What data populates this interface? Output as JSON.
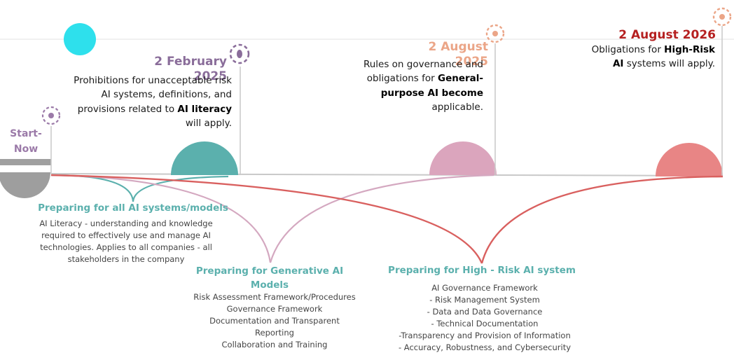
{
  "start": {
    "label": "Start-\nNow",
    "color": "#9b7aa8"
  },
  "milestones": [
    {
      "date": "2 February 2025",
      "date_color": "#8a6d9a",
      "desc_parts": [
        {
          "text": "Prohibitions for unacceptable risk AI systems, definitions, and provisions related to ",
          "bold": false
        },
        {
          "text": "AI literacy",
          "bold": true
        },
        {
          "text": " will apply.",
          "bold": false
        }
      ],
      "dome_color": "#5bb0ad",
      "icon": "target-icon",
      "icon_color": "#8a6d9a"
    },
    {
      "date": "2 August 2025",
      "date_color": "#eba587",
      "desc_parts": [
        {
          "text": "Rules on governance and obligations for ",
          "bold": false
        },
        {
          "text": "General-purpose AI become",
          "bold": true
        },
        {
          "text": " applicable.",
          "bold": false
        }
      ],
      "dome_color": "#dba5bd",
      "icon": "target-icon",
      "icon_color": "#eba587"
    },
    {
      "date": "2 August 2026",
      "date_color": "#b52020",
      "desc_parts": [
        {
          "text": "Obligations for ",
          "bold": false
        },
        {
          "text": "High-Risk AI",
          "bold": true
        },
        {
          "text": " systems will apply.",
          "bold": false
        }
      ],
      "dome_color": "#e88585",
      "icon": "target-icon",
      "icon_color": "#eba587"
    }
  ],
  "preparations": [
    {
      "title": "Preparing for all AI systems/models",
      "title_color": "#5bb0ad",
      "lines": [
        "AI Literacy - understanding and knowledge",
        "required to effectively use and manage AI",
        "technologies. Applies to all companies - all",
        "stakeholders in the company"
      ],
      "curve_color": "#5bb0ad"
    },
    {
      "title": "Preparing for Generative AI Models",
      "title_color": "#5bb0ad",
      "lines": [
        "Risk Assessment Framework/Procedures",
        "Governance Framework",
        "Documentation and Transparent",
        "Reporting",
        "Collaboration and Training"
      ],
      "curve_color": "#d4a8c0"
    },
    {
      "title": "Preparing for High - Risk AI system",
      "title_color": "#5bb0ad",
      "lines": [
        "AI Governance Framework",
        "- Risk Management System",
        "- Data and Data Governance",
        "- Technical Documentation",
        "-Transparency and Provision of Information",
        "- Accuracy, Robustness, and Cybersecurity"
      ],
      "curve_color": "#d9605f"
    }
  ],
  "colors": {
    "timeline": "#c9c9c9",
    "start_dome": "#9e9e9e",
    "start_bar": "#a0a0a0",
    "cyan_dot": "#2ee0ec",
    "top_rule": "#e6e6e6"
  }
}
